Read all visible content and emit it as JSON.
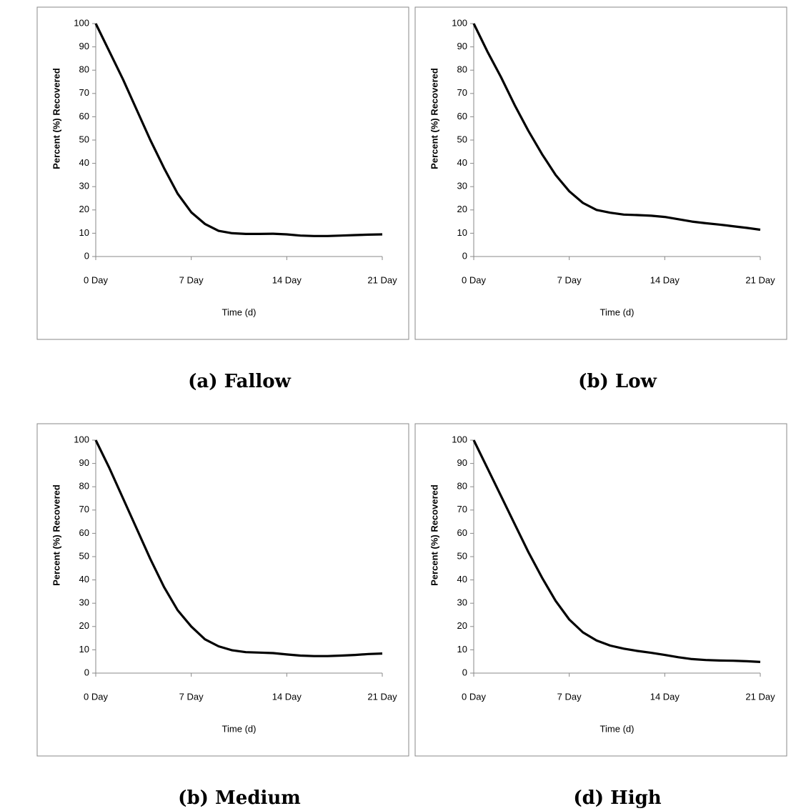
{
  "chart_data": [
    {
      "type": "line",
      "caption": "(a)  Fallow",
      "x_label": "Time (d)",
      "y_label": "Percent (%) Recovered",
      "x": [
        0,
        1,
        2,
        3,
        4,
        5,
        6,
        7,
        8,
        9,
        10,
        11,
        12,
        13,
        14,
        15,
        16,
        17,
        18,
        19,
        20,
        21
      ],
      "series": [
        {
          "color": "#000000",
          "values": [
            100,
            88,
            76,
            63,
            50,
            38,
            27,
            19,
            14,
            11,
            10,
            9.7,
            9.7,
            9.8,
            9.5,
            9,
            8.8,
            8.8,
            9,
            9.2,
            9.4,
            9.5
          ]
        }
      ],
      "xlim": [
        0,
        21
      ],
      "xticks": [
        {
          "value": 0,
          "label": "0 Day"
        },
        {
          "value": 7,
          "label": "7 Day"
        },
        {
          "value": 14,
          "label": "14 Day"
        },
        {
          "value": 21,
          "label": "21 Day"
        }
      ],
      "ylim": [
        0,
        100
      ],
      "yticks": [
        0,
        10,
        20,
        30,
        40,
        50,
        60,
        70,
        80,
        90,
        100
      ],
      "grid": false
    },
    {
      "type": "line",
      "caption": "(b) Low",
      "x_label": "Time (d)",
      "y_label": "Percent (%) Recovered",
      "x": [
        0,
        1,
        2,
        3,
        4,
        5,
        6,
        7,
        8,
        9,
        10,
        11,
        12,
        13,
        14,
        15,
        16,
        17,
        18,
        19,
        20,
        21
      ],
      "series": [
        {
          "color": "#000000",
          "values": [
            100,
            88,
            77,
            65,
            54,
            44,
            35,
            28,
            23,
            20,
            18.8,
            18,
            17.8,
            17.5,
            17,
            16,
            15,
            14.3,
            13.7,
            13,
            12.3,
            11.5
          ]
        }
      ],
      "xlim": [
        0,
        21
      ],
      "xticks": [
        {
          "value": 0,
          "label": "0 Day"
        },
        {
          "value": 7,
          "label": "7 Day"
        },
        {
          "value": 14,
          "label": "14 Day"
        },
        {
          "value": 21,
          "label": "21 Day"
        }
      ],
      "ylim": [
        0,
        100
      ],
      "yticks": [
        0,
        10,
        20,
        30,
        40,
        50,
        60,
        70,
        80,
        90,
        100
      ],
      "grid": false
    },
    {
      "type": "line",
      "caption": "(b)  Medium",
      "x_label": "Time (d)",
      "y_label": "Percent (%) Recovered",
      "x": [
        0,
        1,
        2,
        3,
        4,
        5,
        6,
        7,
        8,
        9,
        10,
        11,
        12,
        13,
        14,
        15,
        16,
        17,
        18,
        19,
        20,
        21
      ],
      "series": [
        {
          "color": "#000000",
          "values": [
            100,
            88,
            75,
            62,
            49,
            37,
            27,
            20,
            14.5,
            11.5,
            9.8,
            9,
            8.8,
            8.6,
            8,
            7.5,
            7.3,
            7.3,
            7.5,
            7.8,
            8.2,
            8.4
          ]
        }
      ],
      "xlim": [
        0,
        21
      ],
      "xticks": [
        {
          "value": 0,
          "label": "0 Day"
        },
        {
          "value": 7,
          "label": "7 Day"
        },
        {
          "value": 14,
          "label": "14 Day"
        },
        {
          "value": 21,
          "label": "21 Day"
        }
      ],
      "ylim": [
        0,
        100
      ],
      "yticks": [
        0,
        10,
        20,
        30,
        40,
        50,
        60,
        70,
        80,
        90,
        100
      ],
      "grid": false
    },
    {
      "type": "line",
      "caption": "(d) High",
      "x_label": "Time (d)",
      "y_label": "Percent (%) Recovered",
      "x": [
        0,
        1,
        2,
        3,
        4,
        5,
        6,
        7,
        8,
        9,
        10,
        11,
        12,
        13,
        14,
        15,
        16,
        17,
        18,
        19,
        20,
        21
      ],
      "series": [
        {
          "color": "#000000",
          "values": [
            100,
            88,
            76,
            64,
            52,
            41,
            31,
            23,
            17.5,
            14,
            11.8,
            10.5,
            9.5,
            8.7,
            7.8,
            6.8,
            6,
            5.6,
            5.4,
            5.3,
            5.1,
            4.8
          ]
        }
      ],
      "xlim": [
        0,
        21
      ],
      "xticks": [
        {
          "value": 0,
          "label": "0 Day"
        },
        {
          "value": 7,
          "label": "7 Day"
        },
        {
          "value": 14,
          "label": "14 Day"
        },
        {
          "value": 21,
          "label": "21 Day"
        }
      ],
      "ylim": [
        0,
        100
      ],
      "yticks": [
        0,
        10,
        20,
        30,
        40,
        50,
        60,
        70,
        80,
        90,
        100
      ],
      "grid": false
    }
  ]
}
